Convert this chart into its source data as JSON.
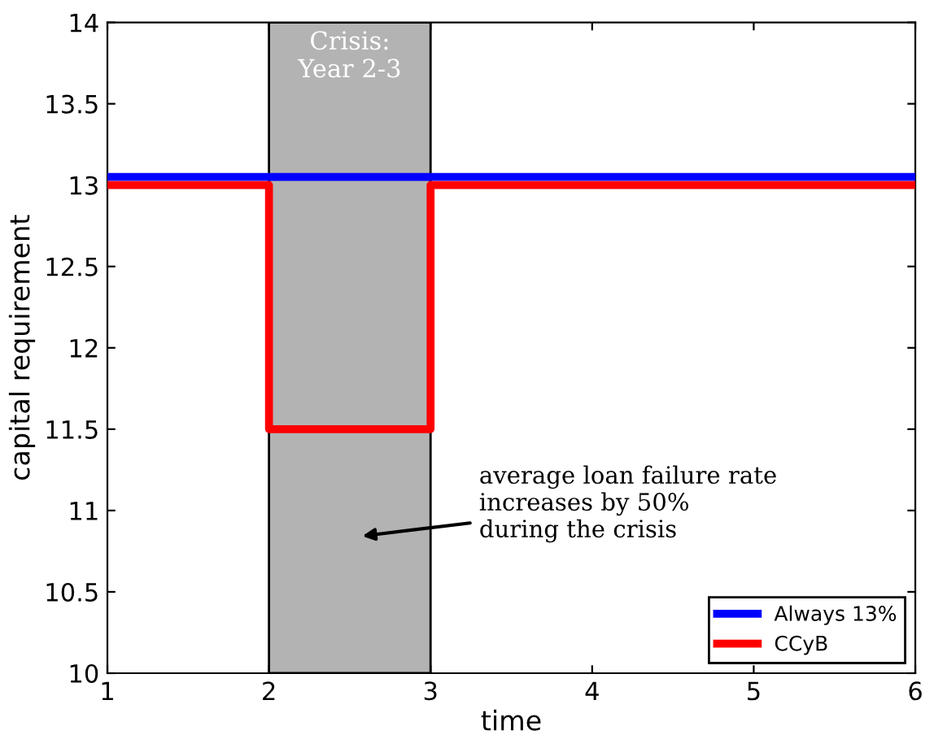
{
  "chart_data": {
    "type": "line",
    "xlabel": "time",
    "ylabel": "capital requirement",
    "x": [
      1,
      2,
      3,
      6
    ],
    "series": [
      {
        "name": "Always 13%",
        "color": "#0000ff",
        "values": [
          13.05,
          13.05,
          13.05,
          13.05
        ]
      },
      {
        "name": "CCyB",
        "color": "#ff0000",
        "type": "step",
        "values": [
          13,
          11.5,
          13,
          13
        ]
      }
    ],
    "xlim": [
      1,
      6
    ],
    "ylim": [
      10,
      14
    ],
    "xticks": [
      1,
      2,
      3,
      4,
      5,
      6
    ],
    "yticks": [
      10,
      10.5,
      11,
      11.5,
      12,
      12.5,
      13,
      13.5,
      14
    ],
    "bands": [
      {
        "axis": "x",
        "from": 2,
        "to": 3,
        "label": "Crisis:\nYear 2-3",
        "color": "#b3b3b3"
      }
    ],
    "annotations": [
      "average loan failure rate\nincreases by 50%\nduring the crisis"
    ],
    "legend": "bottom right",
    "grid": false,
    "line_style": "solid"
  }
}
